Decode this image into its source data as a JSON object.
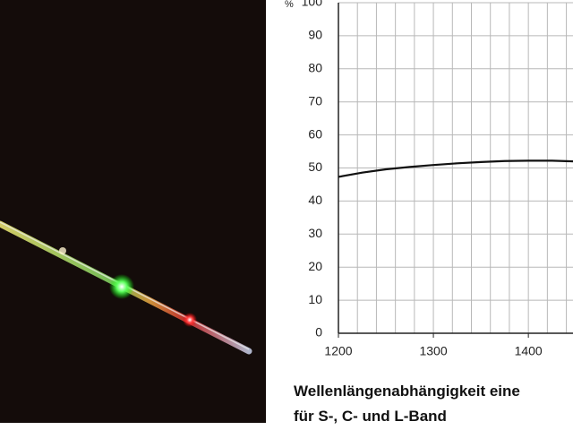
{
  "chart_data": {
    "type": "line",
    "ylabel": "%",
    "x": [
      1200,
      1225,
      1250,
      1275,
      1300,
      1325,
      1350,
      1375,
      1400,
      1425,
      1447
    ],
    "series": [
      {
        "name": "Wellenlängenabhängigkeit",
        "color": "#111111",
        "values": [
          47.3,
          48.6,
          49.6,
          50.3,
          50.9,
          51.4,
          51.8,
          52.1,
          52.2,
          52.2,
          52.0
        ]
      }
    ],
    "xlim": [
      1200,
      1447
    ],
    "ylim": [
      0,
      100
    ],
    "xticks": [
      1200,
      1300,
      1400
    ],
    "yticks": [
      0,
      10,
      20,
      30,
      40,
      50,
      60,
      70,
      80,
      90,
      100
    ],
    "xgrid": [
      1220,
      1240,
      1260,
      1280,
      1300,
      1320,
      1340,
      1360,
      1380,
      1400,
      1420,
      1440
    ],
    "grid": true
  },
  "caption": {
    "line1": "Wellenlängenabhängigkeit eine",
    "line2": "für S-, C- und L-Band"
  }
}
